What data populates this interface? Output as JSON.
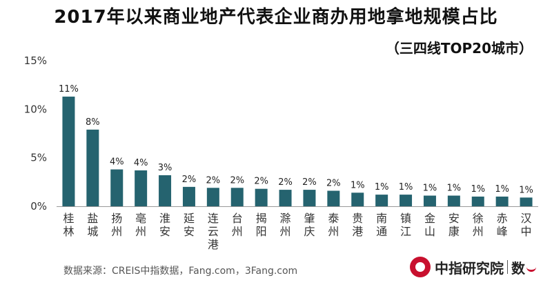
{
  "title": "2017年以来商业地产代表企业商办用地拿地规模占比",
  "subtitle": "（三四线TOP20城市）",
  "source": "数据来源：CREIS中指数据，Fang.com，3Fang.com",
  "logo": {
    "name": "中指研究院",
    "suffix": "数"
  },
  "colors": {
    "bar": "#25636f",
    "axis": "#999999",
    "logo": "#c8102e"
  },
  "chart_data": {
    "type": "bar",
    "title": "2017年以来商业地产代表企业商办用地拿地规模占比",
    "subtitle": "（三四线TOP20城市）",
    "categories": [
      "桂林",
      "盐城",
      "扬州",
      "亳州",
      "淮安",
      "延安",
      "连云港",
      "台州",
      "揭阳",
      "滁州",
      "肇庆",
      "泰州",
      "贵港",
      "南通",
      "镇江",
      "金山",
      "安康",
      "徐州",
      "赤峰",
      "汉中"
    ],
    "values": [
      11.3,
      7.9,
      3.8,
      3.7,
      3.2,
      2.0,
      1.9,
      1.9,
      1.8,
      1.7,
      1.7,
      1.6,
      1.4,
      1.2,
      1.2,
      1.1,
      1.1,
      1.0,
      1.0,
      0.9
    ],
    "data_labels": [
      "11%",
      "8%",
      "4%",
      "4%",
      "3%",
      "2%",
      "2%",
      "2%",
      "2%",
      "2%",
      "2%",
      "2%",
      "1%",
      "1%",
      "1%",
      "1%",
      "1%",
      "1%",
      "1%",
      "1%"
    ],
    "y_ticks": [
      "0%",
      "5%",
      "10%",
      "15%"
    ],
    "ylim": [
      0,
      15
    ],
    "xlabel": "",
    "ylabel": "",
    "grid": false,
    "legend": "none"
  }
}
